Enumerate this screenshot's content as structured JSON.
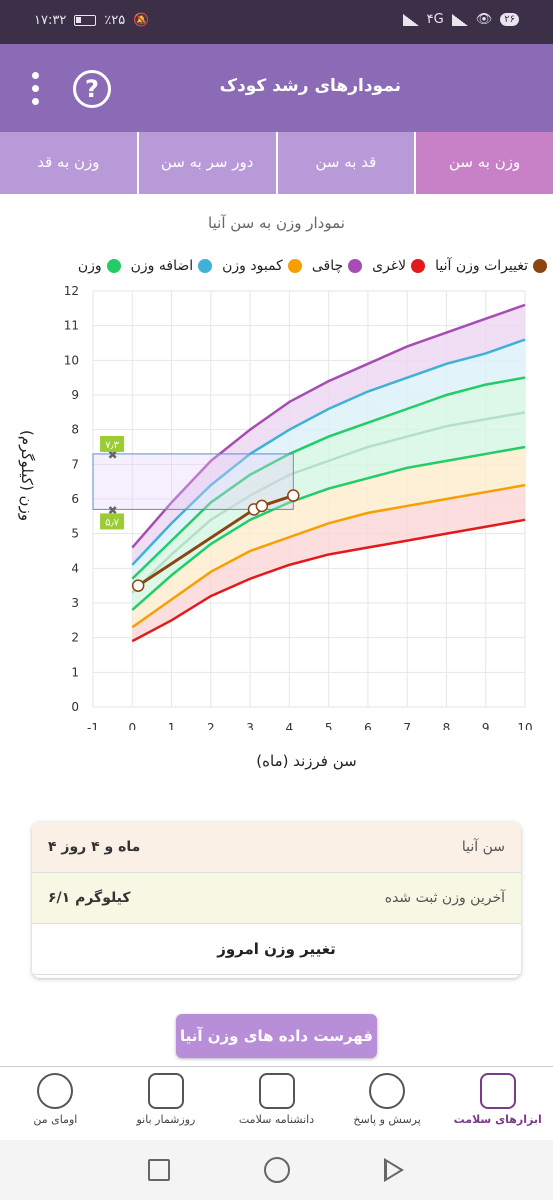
{
  "status": {
    "time": "۱۷:۳۲",
    "battery": "٪۲۵",
    "net": "۴G",
    "pill": "۲۶"
  },
  "header": {
    "title": "نمودارهای رشد کودک",
    "help": "?"
  },
  "tabs": [
    {
      "label": "وزن به سن"
    },
    {
      "label": "قد به سن"
    },
    {
      "label": "دور سر به سن"
    },
    {
      "label": "وزن به قد"
    }
  ],
  "chart_title": "نمودار وزن به سن آنیا",
  "legend": [
    {
      "label": "تغییرات وزن آنیا",
      "color": "#8b4513"
    },
    {
      "label": "لاغری",
      "color": "#e31a1c"
    },
    {
      "label": "چاقی",
      "color": "#a64db3"
    },
    {
      "label": "کمبود وزن",
      "color": "#f5a000"
    },
    {
      "label": "اضافه وزن",
      "color": "#3fb1d6"
    },
    {
      "label": "وزن",
      "color": "#22cc66"
    }
  ],
  "chart_data": {
    "type": "line",
    "xlabel": "سن فرزند (ماه)",
    "ylabel": "وزن (کیلوگرم)",
    "xlim": [
      -1,
      10
    ],
    "ylim": [
      0,
      12
    ],
    "x_ticks": [
      "-1",
      "0",
      "1",
      "2",
      "3",
      "4",
      "5",
      "6",
      "7",
      "8",
      "9",
      "10"
    ],
    "y_ticks": [
      "0",
      "1",
      "2",
      "3",
      "4",
      "5",
      "6",
      "7",
      "8",
      "9",
      "10",
      "11",
      "12"
    ],
    "x": [
      0,
      1,
      2,
      3,
      4,
      5,
      6,
      7,
      8,
      9,
      10
    ],
    "series": [
      {
        "name": "چاقی",
        "color": "#a64db3",
        "values": [
          4.6,
          5.9,
          7.1,
          8.0,
          8.8,
          9.4,
          9.9,
          10.4,
          10.8,
          11.2,
          11.6
        ]
      },
      {
        "name": "اضافه وزن",
        "color": "#3fb1d6",
        "values": [
          4.1,
          5.3,
          6.4,
          7.3,
          8.0,
          8.6,
          9.1,
          9.5,
          9.9,
          10.2,
          10.6
        ]
      },
      {
        "name": "وزن",
        "color": "#22cc66",
        "values": [
          3.7,
          4.8,
          5.9,
          6.7,
          7.3,
          7.8,
          8.2,
          8.6,
          9.0,
          9.3,
          9.5
        ]
      },
      {
        "name": "",
        "color": "#b5dfc6",
        "values": [
          3.3,
          4.4,
          5.4,
          6.1,
          6.7,
          7.1,
          7.5,
          7.8,
          8.1,
          8.3,
          8.5
        ]
      },
      {
        "name": "",
        "color": "#22cc66",
        "values": [
          2.8,
          3.8,
          4.7,
          5.4,
          5.9,
          6.3,
          6.6,
          6.9,
          7.1,
          7.3,
          7.5
        ]
      },
      {
        "name": "کمبود وزن",
        "color": "#f5a000",
        "values": [
          2.3,
          3.1,
          3.9,
          4.5,
          4.9,
          5.3,
          5.6,
          5.8,
          6.0,
          6.2,
          6.4
        ]
      },
      {
        "name": "لاغری",
        "color": "#e31a1c",
        "values": [
          1.9,
          2.5,
          3.2,
          3.7,
          4.1,
          4.4,
          4.6,
          4.8,
          5.0,
          5.2,
          5.4
        ]
      }
    ],
    "child": {
      "name": "تغییرات وزن آنیا",
      "color": "#8b4513",
      "x": [
        0.15,
        3.1,
        3.3,
        4.1
      ],
      "values": [
        3.5,
        5.7,
        5.8,
        6.1
      ]
    },
    "target_range": {
      "x": [
        -1,
        4.1
      ],
      "values": [
        5.7,
        7.3
      ],
      "labels": [
        "۵٫۷",
        "۷٫۳"
      ]
    }
  },
  "info": {
    "age_label": "سن آنیا",
    "age_value": "۴ ماه و ۴ روز",
    "weight_label": "آخرین وزن ثبت شده",
    "weight_value": "۶/۱ کیلوگرم",
    "change_button": "تغییر وزن امروز"
  },
  "list_button": "فهرست داده های وزن آنیا",
  "bottom_nav": [
    {
      "label": "ابزارهای سلامت",
      "icon": "medkit-icon"
    },
    {
      "label": "پرسش و پاسخ",
      "icon": "question-bubble-icon"
    },
    {
      "label": "دانشنامه سلامت",
      "icon": "book-icon"
    },
    {
      "label": "روزشمار بانو",
      "icon": "calendar-icon"
    },
    {
      "label": "اومای من",
      "icon": "profile-icon"
    }
  ]
}
